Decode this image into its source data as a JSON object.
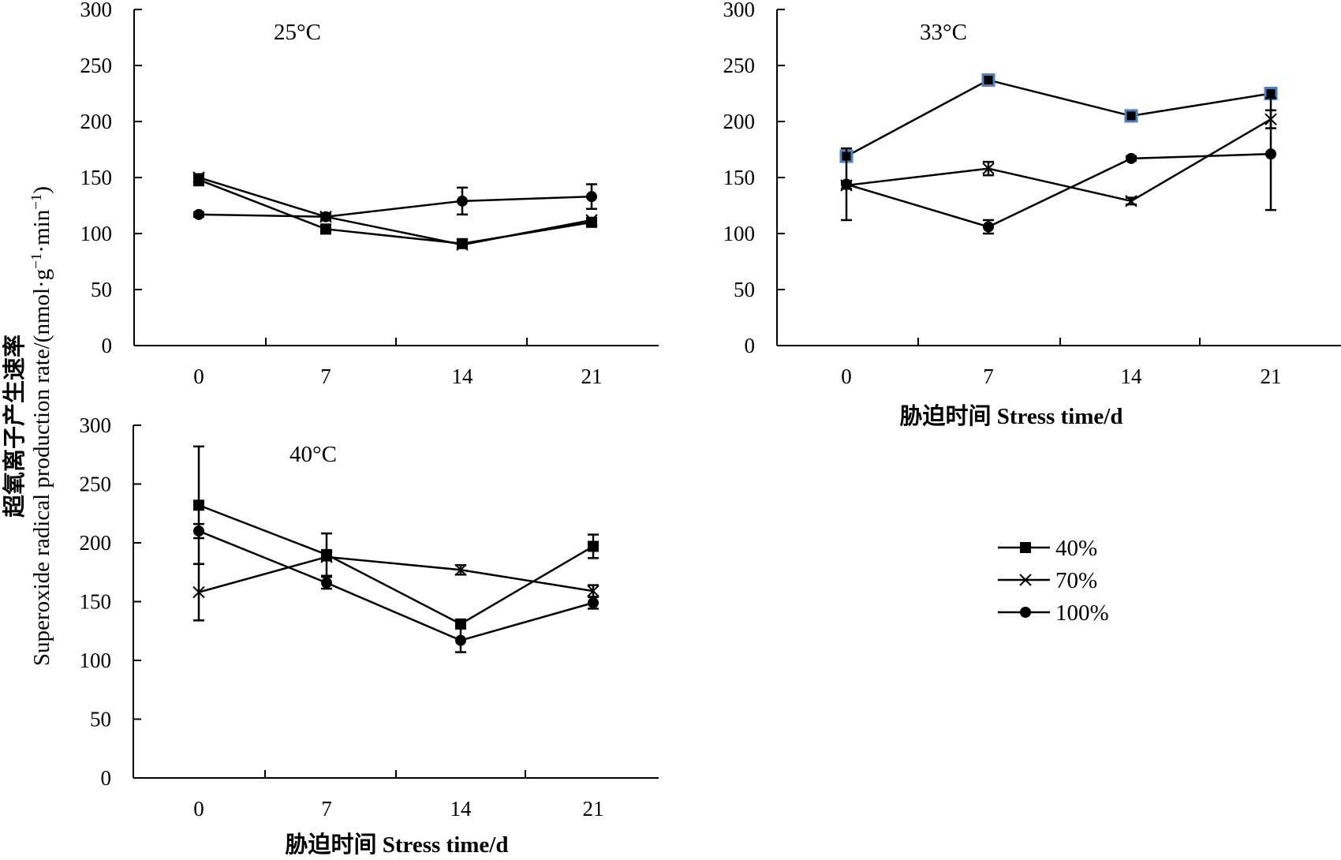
{
  "figure": {
    "y_axis_title_line1": "超氧离子产生速率",
    "y_axis_title_line2_prefix": "Superoxide radical production rate/(nmol·g",
    "y_axis_title_sup1": "−1",
    "y_axis_title_mid": "·min",
    "y_axis_title_sup2": "−1",
    "y_axis_title_suffix": ")",
    "x_axis_title": "胁迫时间 Stress time/d"
  },
  "legend": [
    {
      "label": "40%",
      "marker": "square"
    },
    {
      "label": "70%",
      "marker": "x"
    },
    {
      "label": "100%",
      "marker": "circle"
    }
  ],
  "colors": {
    "line": "#000000",
    "marker_highlight": "#4f81bd"
  },
  "chart_data": [
    {
      "type": "line",
      "title": "25°C",
      "categories": [
        "0",
        "7",
        "14",
        "21"
      ],
      "ylim": [
        0,
        300
      ],
      "yticks": [
        "0",
        "50",
        "100",
        "150",
        "200",
        "250",
        "300"
      ],
      "grid": false,
      "xlabel": "",
      "series": [
        {
          "name": "40%",
          "marker": "square",
          "values": [
            148,
            104,
            91,
            110
          ],
          "errors": [
            5,
            4,
            3,
            3
          ]
        },
        {
          "name": "70%",
          "marker": "x",
          "values": [
            150,
            115,
            90,
            112
          ],
          "errors": [
            3,
            3,
            2,
            2
          ]
        },
        {
          "name": "100%",
          "marker": "circle",
          "values": [
            117,
            115,
            129,
            133
          ],
          "errors": [
            2,
            3,
            12,
            11
          ]
        }
      ]
    },
    {
      "type": "line",
      "title": "33°C",
      "categories": [
        "0",
        "7",
        "14",
        "21"
      ],
      "ylim": [
        0,
        300
      ],
      "yticks": [
        "0",
        "50",
        "100",
        "150",
        "200",
        "250",
        "300"
      ],
      "grid": false,
      "xlabel": "胁迫时间 Stress time/d",
      "series": [
        {
          "name": "40%",
          "marker": "square",
          "values": [
            169,
            237,
            205,
            225
          ],
          "errors": [
            3,
            4,
            3,
            3
          ],
          "highlight": true
        },
        {
          "name": "70%",
          "marker": "x",
          "values": [
            143,
            158,
            129,
            202
          ],
          "errors": [
            3,
            6,
            3,
            8
          ]
        },
        {
          "name": "100%",
          "marker": "circle",
          "values": [
            144,
            106,
            167,
            171
          ],
          "errors": [
            32,
            6,
            2,
            50
          ]
        }
      ]
    },
    {
      "type": "line",
      "title": "40°C",
      "categories": [
        "0",
        "7",
        "14",
        "21"
      ],
      "ylim": [
        0,
        300
      ],
      "yticks": [
        "0",
        "50",
        "100",
        "150",
        "200",
        "250",
        "300"
      ],
      "grid": false,
      "xlabel": "胁迫时间 Stress time/d",
      "series": [
        {
          "name": "40%",
          "marker": "square",
          "values": [
            232,
            190,
            131,
            197
          ],
          "errors": [
            50,
            18,
            3,
            10
          ]
        },
        {
          "name": "70%",
          "marker": "x",
          "values": [
            158,
            188,
            177,
            159
          ],
          "errors": [
            24,
            3,
            4,
            5
          ]
        },
        {
          "name": "100%",
          "marker": "circle",
          "values": [
            210,
            166,
            117,
            149
          ],
          "errors": [
            6,
            5,
            10,
            5
          ]
        }
      ]
    }
  ]
}
